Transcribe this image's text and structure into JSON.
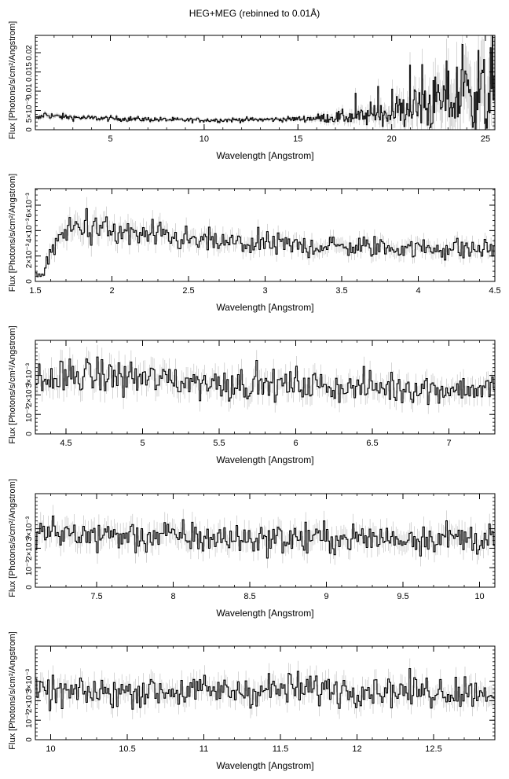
{
  "title": "HEG+MEG (rebinned to 0.01Å)",
  "chart_data": [
    {
      "type": "line",
      "xlabel": "Wavelength [Angstrom]",
      "ylabel": "Flux [Photons/s/cm²/Angstrom]",
      "xlim": [
        1.0,
        25.5
      ],
      "ylim": [
        0,
        0.0245
      ],
      "xticks": [
        5,
        10,
        15,
        20,
        25
      ],
      "xtick_labels": [
        "5",
        "10",
        "15",
        "20",
        "25"
      ],
      "yticks": [
        0,
        0.005,
        0.01,
        0.015,
        0.02
      ],
      "ytick_labels": [
        "0",
        "5×10⁻³",
        "0.01",
        "0.015",
        "0.02"
      ],
      "series": [
        {
          "x": [
            1.2,
            1.5,
            2,
            3,
            4,
            5,
            6,
            7,
            8,
            9,
            10,
            11,
            12,
            13,
            14,
            15,
            16,
            17,
            18,
            19,
            20,
            21,
            22,
            23,
            24,
            25,
            25.4
          ],
          "values": [
            0.003,
            0.004,
            0.0035,
            0.0032,
            0.003,
            0.0029,
            0.0028,
            0.0027,
            0.0026,
            0.0025,
            0.0025,
            0.0025,
            0.0026,
            0.0026,
            0.0027,
            0.0028,
            0.003,
            0.0032,
            0.0034,
            0.0038,
            0.0045,
            0.0055,
            0.0065,
            0.0075,
            0.0085,
            0.0095,
            0.01
          ]
        }
      ]
    },
    {
      "type": "line",
      "xlabel": "Wavelength [Angstrom]",
      "ylabel": "Flux [Photons/s/cm²/Angstrom]",
      "xlim": [
        1.5,
        4.5
      ],
      "ylim": [
        0,
        0.0073
      ],
      "xticks": [
        1.5,
        2,
        2.5,
        3,
        3.5,
        4,
        4.5
      ],
      "xtick_labels": [
        "1.5",
        "2",
        "2.5",
        "3",
        "3.5",
        "4",
        "4.5"
      ],
      "yticks": [
        0,
        0.002,
        0.004,
        0.006
      ],
      "ytick_labels": [
        "0",
        "2×10⁻³",
        "4×10⁻³",
        "6×10⁻³"
      ],
      "series": [
        {
          "x": [
            1.55,
            1.6,
            1.7,
            1.8,
            1.9,
            2.0,
            2.2,
            2.4,
            2.6,
            2.8,
            3.0,
            3.2,
            3.4,
            3.6,
            3.8,
            4.0,
            4.2,
            4.4,
            4.5
          ],
          "values": [
            0.0005,
            0.0025,
            0.0038,
            0.0045,
            0.0042,
            0.0038,
            0.0036,
            0.0034,
            0.0031,
            0.003,
            0.0029,
            0.0028,
            0.0028,
            0.0027,
            0.0027,
            0.0026,
            0.0026,
            0.0025,
            0.0026
          ]
        }
      ]
    },
    {
      "type": "line",
      "xlabel": "Wavelength [Angstrom]",
      "ylabel": "Flux [Photons/s/cm²/Angstrom]",
      "xlim": [
        4.3,
        7.3
      ],
      "ylim": [
        0,
        0.0048
      ],
      "xticks": [
        4.5,
        5,
        5.5,
        6,
        6.5,
        7
      ],
      "xtick_labels": [
        "4.5",
        "5",
        "5.5",
        "6",
        "6.5",
        "7"
      ],
      "yticks": [
        0,
        0.001,
        0.002,
        0.003
      ],
      "ytick_labels": [
        "0",
        "10⁻³",
        "2×10⁻³",
        "3×10⁻³"
      ],
      "series": [
        {
          "x": [
            4.3,
            4.5,
            4.7,
            4.9,
            5.1,
            5.3,
            5.5,
            5.7,
            5.9,
            6.1,
            6.3,
            6.5,
            6.7,
            6.9,
            7.1,
            7.3
          ],
          "values": [
            0.0027,
            0.0029,
            0.003,
            0.0029,
            0.0028,
            0.0027,
            0.0026,
            0.0026,
            0.0025,
            0.0025,
            0.0024,
            0.0024,
            0.0024,
            0.0023,
            0.0023,
            0.0023
          ]
        }
      ]
    },
    {
      "type": "line",
      "xlabel": "Wavelength [Angstrom]",
      "ylabel": "Flux [Photons/s/cm²/Angstrom]",
      "xlim": [
        7.1,
        10.1
      ],
      "ylim": [
        0,
        0.0048
      ],
      "xticks": [
        7.5,
        8,
        8.5,
        9,
        9.5,
        10
      ],
      "xtick_labels": [
        "7.5",
        "8",
        "8.5",
        "9",
        "9.5",
        "10"
      ],
      "yticks": [
        0,
        0.001,
        0.002,
        0.003
      ],
      "ytick_labels": [
        "0",
        "10⁻³",
        "2×10⁻³",
        "3×10⁻³"
      ],
      "series": [
        {
          "x": [
            7.1,
            7.3,
            7.5,
            7.7,
            7.9,
            8.1,
            8.3,
            8.5,
            8.7,
            8.9,
            9.1,
            9.3,
            9.5,
            9.7,
            9.9,
            10.1
          ],
          "values": [
            0.0028,
            0.0027,
            0.0027,
            0.0026,
            0.0026,
            0.0026,
            0.0025,
            0.0025,
            0.0025,
            0.0025,
            0.0025,
            0.0025,
            0.0025,
            0.0026,
            0.0025,
            0.0025
          ]
        }
      ]
    },
    {
      "type": "line",
      "xlabel": "Wavelength [Angstrom]",
      "ylabel": "Flux [Photons/s/cm²/Angstrom]",
      "xlim": [
        9.9,
        12.9
      ],
      "ylim": [
        0,
        0.0048
      ],
      "xticks": [
        10,
        10.5,
        11,
        11.5,
        12,
        12.5
      ],
      "xtick_labels": [
        "10",
        "10.5",
        "11",
        "11.5",
        "12",
        "12.5"
      ],
      "yticks": [
        0,
        0.001,
        0.002,
        0.003
      ],
      "ytick_labels": [
        "0",
        "10⁻³",
        "2×10⁻³",
        "3×10⁻³"
      ],
      "series": [
        {
          "x": [
            9.9,
            10.1,
            10.3,
            10.5,
            10.7,
            10.9,
            11.1,
            11.3,
            11.5,
            11.7,
            11.9,
            12.1,
            12.3,
            12.5,
            12.7,
            12.9
          ],
          "values": [
            0.0024,
            0.0024,
            0.0024,
            0.0025,
            0.0025,
            0.0025,
            0.0025,
            0.0025,
            0.0026,
            0.0026,
            0.0026,
            0.0026,
            0.0025,
            0.0025,
            0.0025,
            0.0025
          ]
        }
      ]
    }
  ]
}
